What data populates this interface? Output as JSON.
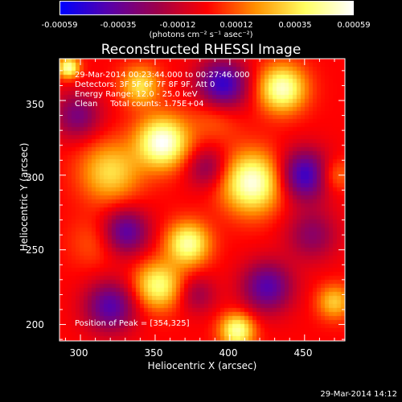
{
  "chart_data": {
    "type": "heatmap",
    "title": "Reconstructed RHESSI Image",
    "xlabel": "Heliocentric X (arcsec)",
    "ylabel": "Heliocentric Y (arcsec)",
    "xlim": [
      286,
      477
    ],
    "ylim": [
      189,
      378
    ],
    "xticks": [
      "300",
      "350",
      "400",
      "450"
    ],
    "xtick_values": [
      300,
      350,
      400,
      450
    ],
    "yticks": [
      "200",
      "250",
      "300",
      "350"
    ],
    "ytick_values": [
      200,
      250,
      300,
      350
    ],
    "colorbar": {
      "range": [
        -0.00059,
        0.00059
      ],
      "tick_labels": [
        "-0.00059",
        "-0.00035",
        "-0.00012",
        "0.00012",
        "0.00035",
        "0.00059"
      ],
      "tick_values": [
        -0.00059,
        -0.00035,
        -0.00012,
        0.00012,
        0.00035,
        0.00059
      ],
      "units": "(photons cm⁻² s⁻¹ asec⁻²)",
      "colors": [
        "#0000ff",
        "#5a00aa",
        "#a0004a",
        "#ff0000",
        "#ff9000",
        "#ffff60",
        "#ffffff"
      ]
    },
    "annotations": {
      "time": "29-Mar-2014 00:23:44.000 to 00:27:46.000",
      "detectors": "Detectors: 3F 5F 6F 7F 8F 9F, Att 0",
      "energy": "Energy Range: 12.0 - 25.0 keV",
      "clean": "Clean     Total counts: 1.75E+04",
      "peak": "Position of Peak = [354,325]"
    },
    "blobs": [
      {
        "x": 355,
        "y": 322,
        "amp": 0.00059,
        "s": 12
      },
      {
        "x": 340,
        "y": 360,
        "amp": 0.00035,
        "s": 9
      },
      {
        "x": 415,
        "y": 295,
        "amp": 0.00056,
        "s": 14
      },
      {
        "x": 435,
        "y": 358,
        "amp": 0.00052,
        "s": 11
      },
      {
        "x": 372,
        "y": 254,
        "amp": 0.00048,
        "s": 10
      },
      {
        "x": 352,
        "y": 226,
        "amp": 0.00044,
        "s": 11
      },
      {
        "x": 320,
        "y": 302,
        "amp": 0.00034,
        "s": 14
      },
      {
        "x": 405,
        "y": 196,
        "amp": 0.00048,
        "s": 8
      },
      {
        "x": 292,
        "y": 372,
        "amp": 0.0005,
        "s": 5
      },
      {
        "x": 470,
        "y": 215,
        "amp": 0.0003,
        "s": 8
      },
      {
        "x": 390,
        "y": 340,
        "amp": 0.00015,
        "s": 12
      },
      {
        "x": 310,
        "y": 255,
        "amp": 0.00012,
        "s": 12
      },
      {
        "x": 470,
        "y": 300,
        "amp": 0.0002,
        "s": 8
      },
      {
        "x": 298,
        "y": 340,
        "amp": -0.0003,
        "s": 11
      },
      {
        "x": 330,
        "y": 262,
        "amp": -0.0004,
        "s": 11
      },
      {
        "x": 320,
        "y": 212,
        "amp": -0.0004,
        "s": 12
      },
      {
        "x": 450,
        "y": 300,
        "amp": -0.00048,
        "s": 12
      },
      {
        "x": 395,
        "y": 360,
        "amp": -0.0005,
        "s": 12
      },
      {
        "x": 385,
        "y": 305,
        "amp": -0.00025,
        "s": 10
      },
      {
        "x": 425,
        "y": 225,
        "amp": -0.0004,
        "s": 12
      },
      {
        "x": 455,
        "y": 260,
        "amp": -0.00025,
        "s": 12
      },
      {
        "x": 378,
        "y": 220,
        "amp": -0.0002,
        "s": 9
      }
    ]
  },
  "footer": {
    "timestamp": "29-Mar-2014 14:12"
  }
}
